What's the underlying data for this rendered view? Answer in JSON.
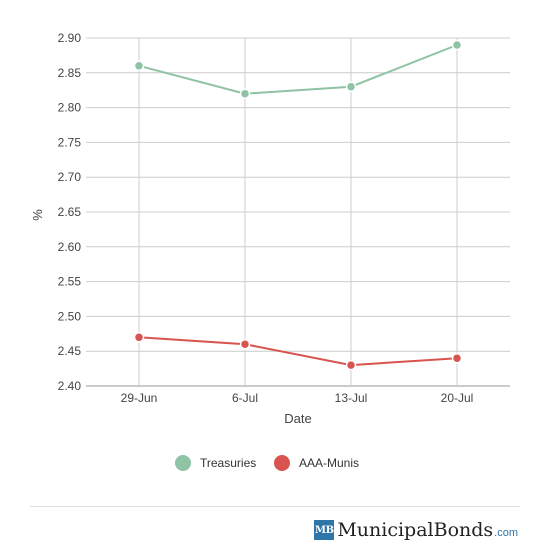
{
  "chart_data": {
    "type": "line",
    "title": "",
    "xlabel": "Date",
    "ylabel": "%",
    "categories": [
      "29-Jun",
      "6-Jul",
      "13-Jul",
      "20-Jul"
    ],
    "ylim": [
      2.4,
      2.9
    ],
    "yticks": [
      "2.90",
      "2.85",
      "2.80",
      "2.75",
      "2.70",
      "2.65",
      "2.60",
      "2.55",
      "2.50",
      "2.45",
      "2.40"
    ],
    "grid": true,
    "legend_position": "bottom",
    "series": [
      {
        "name": "Treasuries",
        "color": "#8ec3a3",
        "values": [
          2.86,
          2.82,
          2.83,
          2.89
        ]
      },
      {
        "name": "AAA-Munis",
        "color": "#d9534f",
        "values": [
          2.47,
          2.46,
          2.43,
          2.44
        ]
      }
    ]
  },
  "footer": {
    "brand_mark": "MB",
    "brand_name": "MunicipalBonds",
    "brand_tld": ".com",
    "brand_color": "#2e75a8"
  }
}
